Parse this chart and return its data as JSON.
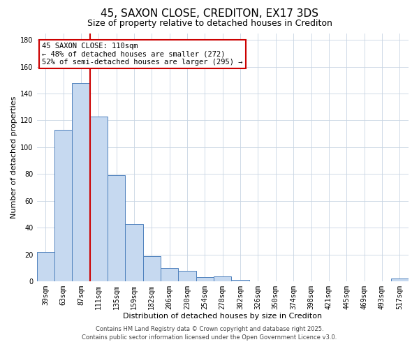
{
  "title": "45, SAXON CLOSE, CREDITON, EX17 3DS",
  "subtitle": "Size of property relative to detached houses in Crediton",
  "xlabel": "Distribution of detached houses by size in Crediton",
  "ylabel": "Number of detached properties",
  "bar_color": "#c6d9f0",
  "bar_edge_color": "#4f81bd",
  "background_color": "#ffffff",
  "grid_color": "#c8d4e3",
  "bin_labels": [
    "39sqm",
    "63sqm",
    "87sqm",
    "111sqm",
    "135sqm",
    "159sqm",
    "182sqm",
    "206sqm",
    "230sqm",
    "254sqm",
    "278sqm",
    "302sqm",
    "326sqm",
    "350sqm",
    "374sqm",
    "398sqm",
    "421sqm",
    "445sqm",
    "469sqm",
    "493sqm",
    "517sqm"
  ],
  "bar_values": [
    22,
    113,
    148,
    123,
    79,
    43,
    19,
    10,
    8,
    3,
    4,
    1,
    0,
    0,
    0,
    0,
    0,
    0,
    0,
    0,
    2
  ],
  "ylim": [
    0,
    185
  ],
  "yticks": [
    0,
    20,
    40,
    60,
    80,
    100,
    120,
    140,
    160,
    180
  ],
  "vline_x": 3.0,
  "vline_color": "#cc0000",
  "ann_line1": "45 SAXON CLOSE: 110sqm",
  "ann_line2": "← 48% of detached houses are smaller (272)",
  "ann_line3": "52% of semi-detached houses are larger (295) →",
  "footer_line1": "Contains HM Land Registry data © Crown copyright and database right 2025.",
  "footer_line2": "Contains public sector information licensed under the Open Government Licence v3.0.",
  "title_fontsize": 11,
  "subtitle_fontsize": 9,
  "axis_label_fontsize": 8,
  "tick_fontsize": 7,
  "annotation_fontsize": 7.5,
  "footer_fontsize": 6
}
